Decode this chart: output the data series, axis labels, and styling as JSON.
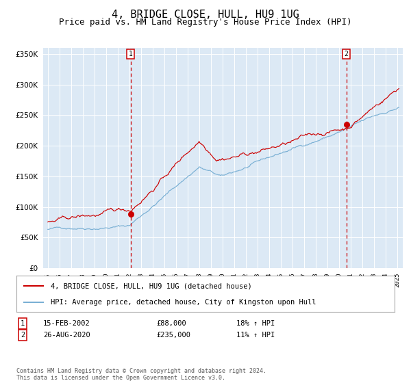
{
  "title": "4, BRIDGE CLOSE, HULL, HU9 1UG",
  "subtitle": "Price paid vs. HM Land Registry's House Price Index (HPI)",
  "title_fontsize": 11,
  "subtitle_fontsize": 9,
  "plot_bg_color": "#dce9f5",
  "ylim": [
    0,
    360000
  ],
  "yticks": [
    0,
    50000,
    100000,
    150000,
    200000,
    250000,
    300000,
    350000
  ],
  "sale1_x": 2002.12,
  "sale1_price": 88000,
  "sale2_x": 2020.65,
  "sale2_price": 235000,
  "red_line_color": "#cc0000",
  "blue_line_color": "#7ab0d4",
  "marker_color": "#cc0000",
  "vline_color": "#cc0000",
  "grid_color": "#ffffff",
  "legend_label_red": "4, BRIDGE CLOSE, HULL, HU9 1UG (detached house)",
  "legend_label_blue": "HPI: Average price, detached house, City of Kingston upon Hull",
  "sale1_date": "15-FEB-2002",
  "sale1_price_str": "£88,000",
  "sale1_hpi": "18% ↑ HPI",
  "sale2_date": "26-AUG-2020",
  "sale2_price_str": "£235,000",
  "sale2_hpi": "11% ↑ HPI",
  "footer_text": "Contains HM Land Registry data © Crown copyright and database right 2024.\nThis data is licensed under the Open Government Licence v3.0."
}
